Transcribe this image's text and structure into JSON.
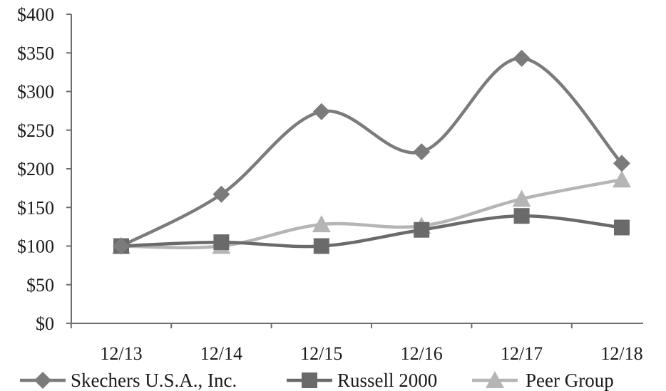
{
  "chart_data": {
    "type": "line",
    "categories": [
      "12/13",
      "12/14",
      "12/15",
      "12/16",
      "12/17",
      "12/18"
    ],
    "ylim": [
      0,
      400
    ],
    "yticks": [
      0,
      50,
      100,
      150,
      200,
      250,
      300,
      350,
      400
    ],
    "ytick_labels": [
      "$0",
      "$50",
      "$100",
      "$150",
      "$200",
      "$250",
      "$300",
      "$350",
      "$400"
    ],
    "grid": false,
    "legend_position": "bottom",
    "series": [
      {
        "name": "Skechers U.S.A., Inc.",
        "values": [
          100,
          167,
          274,
          222,
          343,
          207
        ],
        "marker": "diamond",
        "color": "#7b7b7b"
      },
      {
        "name": "Russell 2000",
        "values": [
          100,
          105,
          100,
          121,
          139,
          124
        ],
        "marker": "square",
        "color": "#6a6a6a"
      },
      {
        "name": "Peer Group",
        "values": [
          100,
          100,
          128,
          126,
          161,
          186
        ],
        "marker": "triangle",
        "color": "#b5b5b5"
      }
    ]
  }
}
